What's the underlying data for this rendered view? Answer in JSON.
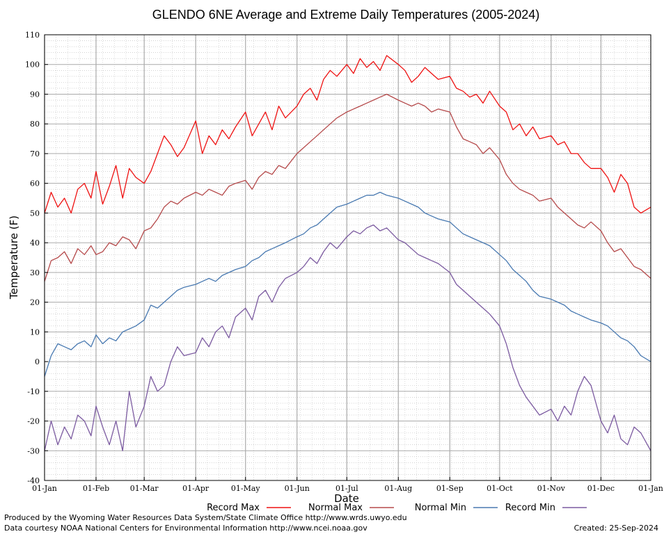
{
  "chart_data": {
    "type": "line",
    "title": "GLENDO 6NE Average and Extreme Daily Temperatures (2005-2024)",
    "xlabel": "Date",
    "ylabel": "Temperature (F)",
    "ylim": [
      -40,
      110
    ],
    "yticks": [
      -40,
      -30,
      -20,
      -10,
      0,
      10,
      20,
      30,
      40,
      50,
      60,
      70,
      80,
      90,
      100,
      110
    ],
    "xlim": [
      1,
      366
    ],
    "xticks": [
      {
        "label": "01-Jan",
        "day": 1
      },
      {
        "label": "01-Feb",
        "day": 32
      },
      {
        "label": "01-Mar",
        "day": 61
      },
      {
        "label": "01-Apr",
        "day": 92
      },
      {
        "label": "01-May",
        "day": 122
      },
      {
        "label": "01-Jun",
        "day": 153
      },
      {
        "label": "01-Jul",
        "day": 183
      },
      {
        "label": "01-Aug",
        "day": 214
      },
      {
        "label": "01-Sep",
        "day": 245
      },
      {
        "label": "01-Oct",
        "day": 275
      },
      {
        "label": "01-Nov",
        "day": 306
      },
      {
        "label": "01-Dec",
        "day": 336
      },
      {
        "label": "01-Jan",
        "day": 366
      }
    ],
    "grid": true,
    "legend_position": "bottom",
    "series": [
      {
        "name": "Record Max",
        "color": "#ee1111",
        "day": [
          1,
          5,
          9,
          13,
          17,
          21,
          25,
          29,
          32,
          36,
          40,
          44,
          48,
          52,
          56,
          61,
          65,
          69,
          73,
          77,
          81,
          85,
          92,
          96,
          100,
          104,
          108,
          112,
          116,
          122,
          126,
          130,
          134,
          138,
          142,
          146,
          153,
          157,
          161,
          165,
          169,
          173,
          177,
          183,
          187,
          191,
          195,
          199,
          203,
          207,
          214,
          218,
          222,
          226,
          230,
          234,
          238,
          245,
          249,
          253,
          257,
          261,
          265,
          269,
          275,
          279,
          283,
          287,
          291,
          295,
          299,
          306,
          310,
          314,
          318,
          322,
          326,
          330,
          336,
          340,
          344,
          348,
          352,
          356,
          360,
          366
        ],
        "values": [
          50,
          57,
          52,
          55,
          50,
          58,
          60,
          55,
          64,
          53,
          59,
          66,
          55,
          65,
          62,
          60,
          64,
          70,
          76,
          73,
          69,
          72,
          81,
          70,
          76,
          73,
          78,
          75,
          79,
          84,
          76,
          80,
          84,
          78,
          86,
          82,
          86,
          90,
          92,
          88,
          95,
          98,
          96,
          100,
          97,
          102,
          99,
          101,
          98,
          103,
          100,
          98,
          94,
          96,
          99,
          97,
          95,
          96,
          92,
          91,
          89,
          90,
          87,
          91,
          86,
          84,
          78,
          80,
          76,
          79,
          75,
          76,
          73,
          74,
          70,
          70,
          67,
          65,
          65,
          62,
          57,
          63,
          60,
          52,
          50,
          52
        ]
      },
      {
        "name": "Normal Max",
        "color": "#b5494a",
        "day": [
          1,
          5,
          9,
          13,
          17,
          21,
          25,
          29,
          32,
          36,
          40,
          44,
          48,
          52,
          56,
          61,
          65,
          69,
          73,
          77,
          81,
          85,
          92,
          96,
          100,
          104,
          108,
          112,
          116,
          122,
          126,
          130,
          134,
          138,
          142,
          146,
          153,
          157,
          161,
          165,
          169,
          173,
          177,
          183,
          187,
          191,
          195,
          199,
          203,
          207,
          214,
          218,
          222,
          226,
          230,
          234,
          238,
          245,
          249,
          253,
          257,
          261,
          265,
          269,
          275,
          279,
          283,
          287,
          291,
          295,
          299,
          306,
          310,
          314,
          318,
          322,
          326,
          330,
          336,
          340,
          344,
          348,
          352,
          356,
          360,
          366
        ],
        "values": [
          27,
          34,
          35,
          37,
          33,
          38,
          36,
          39,
          36,
          37,
          40,
          39,
          42,
          41,
          38,
          44,
          45,
          48,
          52,
          54,
          53,
          55,
          57,
          56,
          58,
          57,
          56,
          59,
          60,
          61,
          58,
          62,
          64,
          63,
          66,
          65,
          70,
          72,
          74,
          76,
          78,
          80,
          82,
          84,
          85,
          86,
          87,
          88,
          89,
          90,
          88,
          87,
          86,
          87,
          86,
          84,
          85,
          84,
          79,
          75,
          74,
          73,
          70,
          72,
          68,
          63,
          60,
          58,
          57,
          56,
          54,
          55,
          52,
          50,
          48,
          46,
          45,
          47,
          44,
          40,
          37,
          38,
          35,
          32,
          31,
          28
        ]
      },
      {
        "name": "Normal Min",
        "color": "#4879b1",
        "day": [
          1,
          5,
          9,
          13,
          17,
          21,
          25,
          29,
          32,
          36,
          40,
          44,
          48,
          52,
          56,
          61,
          65,
          69,
          73,
          77,
          81,
          85,
          92,
          96,
          100,
          104,
          108,
          112,
          116,
          122,
          126,
          130,
          134,
          138,
          142,
          146,
          153,
          157,
          161,
          165,
          169,
          173,
          177,
          183,
          187,
          191,
          195,
          199,
          203,
          207,
          214,
          218,
          222,
          226,
          230,
          234,
          238,
          245,
          249,
          253,
          257,
          261,
          265,
          269,
          275,
          279,
          283,
          287,
          291,
          295,
          299,
          306,
          310,
          314,
          318,
          322,
          326,
          330,
          336,
          340,
          344,
          348,
          352,
          356,
          360,
          366
        ],
        "values": [
          -5,
          2,
          6,
          5,
          4,
          6,
          7,
          5,
          9,
          6,
          8,
          7,
          10,
          11,
          12,
          14,
          19,
          18,
          20,
          22,
          24,
          25,
          26,
          27,
          28,
          27,
          29,
          30,
          31,
          32,
          34,
          35,
          37,
          38,
          39,
          40,
          42,
          43,
          45,
          46,
          48,
          50,
          52,
          53,
          54,
          55,
          56,
          56,
          57,
          56,
          55,
          54,
          53,
          52,
          50,
          49,
          48,
          47,
          45,
          43,
          42,
          41,
          40,
          39,
          36,
          34,
          31,
          29,
          27,
          24,
          22,
          21,
          20,
          19,
          17,
          16,
          15,
          14,
          13,
          12,
          10,
          8,
          7,
          5,
          2,
          0
        ]
      },
      {
        "name": "Record Min",
        "color": "#7b5aa0",
        "day": [
          1,
          5,
          9,
          13,
          17,
          21,
          25,
          29,
          32,
          36,
          40,
          44,
          48,
          52,
          56,
          61,
          65,
          69,
          73,
          77,
          81,
          85,
          92,
          96,
          100,
          104,
          108,
          112,
          116,
          122,
          126,
          130,
          134,
          138,
          142,
          146,
          153,
          157,
          161,
          165,
          169,
          173,
          177,
          183,
          187,
          191,
          195,
          199,
          203,
          207,
          214,
          218,
          222,
          226,
          230,
          234,
          238,
          245,
          249,
          253,
          257,
          261,
          265,
          269,
          275,
          279,
          283,
          287,
          291,
          295,
          299,
          306,
          310,
          314,
          318,
          322,
          326,
          330,
          336,
          340,
          344,
          348,
          352,
          356,
          360,
          366
        ],
        "values": [
          -30,
          -20,
          -28,
          -22,
          -26,
          -18,
          -20,
          -25,
          -15,
          -22,
          -28,
          -20,
          -30,
          -10,
          -22,
          -15,
          -5,
          -10,
          -8,
          0,
          5,
          2,
          3,
          8,
          5,
          10,
          12,
          8,
          15,
          18,
          14,
          22,
          24,
          20,
          25,
          28,
          30,
          32,
          35,
          33,
          37,
          40,
          38,
          42,
          44,
          43,
          45,
          46,
          44,
          45,
          41,
          40,
          38,
          36,
          35,
          34,
          33,
          30,
          26,
          24,
          22,
          20,
          18,
          16,
          12,
          6,
          -2,
          -8,
          -12,
          -15,
          -18,
          -16,
          -20,
          -15,
          -18,
          -10,
          -5,
          -8,
          -20,
          -24,
          -18,
          -26,
          -28,
          -22,
          -24,
          -30
        ]
      }
    ]
  },
  "footer": {
    "produced_by": "Produced by the Wyoming Water Resources Data System/State Climate Office http://www.wrds.uwyo.edu",
    "data_courtesy": "Data courtesy NOAA National Centers for Environmental Information http://www.ncei.noaa.gov",
    "created": "Created:  25-Sep-2024"
  }
}
